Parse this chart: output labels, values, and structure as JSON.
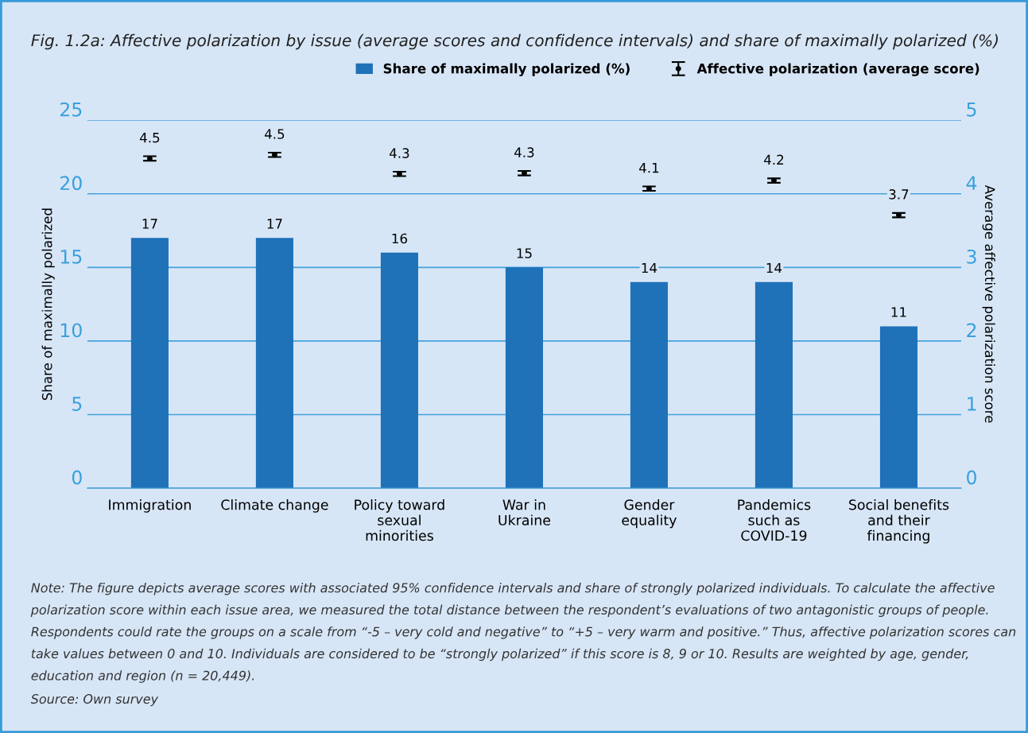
{
  "chart_data": {
    "type": "bar",
    "title": "Fig. 1.2a: Affective polarization by issue (average scores and confidence intervals) and share of maximally polarized (%)",
    "categories": [
      "Immigration",
      "Climate change",
      "Policy toward\nsexual\nminorities",
      "War in\nUkraine",
      "Gender\nequality",
      "Pandemics\nsuch as\nCOVID-19",
      "Social benefits\nand their\nfinancing"
    ],
    "series": [
      {
        "name": "Share of maximally polarized (%)",
        "color": "#1f71b8",
        "values": [
          17,
          17,
          16,
          15,
          14,
          14,
          11
        ],
        "value_labels": [
          "17",
          "17",
          "16",
          "15",
          "14",
          "14",
          "11"
        ]
      },
      {
        "name": "Affective polarization (average score)",
        "type": "scatter",
        "axis": "y2",
        "color": "#000000",
        "values": [
          4.48,
          4.53,
          4.27,
          4.28,
          4.07,
          4.18,
          3.71
        ],
        "errors": [
          0.03,
          0.03,
          0.03,
          0.03,
          0.03,
          0.03,
          0.03
        ],
        "value_labels": [
          "4.5",
          "4.5",
          "4.3",
          "4.3",
          "4.1",
          "4.2",
          "3.7"
        ]
      }
    ],
    "ylabel": "Share of maximally polarized",
    "y2label": "Average affective polarization score",
    "ylim": [
      0,
      25
    ],
    "yticks": [
      0,
      5,
      10,
      15,
      20,
      25
    ],
    "y2lim": [
      0,
      5
    ],
    "y2ticks": [
      0,
      1,
      2,
      3,
      4,
      5
    ],
    "grid": "y",
    "legend": "top right",
    "marker": "circle",
    "annotations": [
      "Note: The figure depicts average scores with associated 95% confidence intervals and share of strongly polarized individuals. To calculate the affective polarization score within each issue area, we measured the total distance between the respondent’s evaluations of two antagonistic groups of people. Respondents could rate the groups on a scale from “-5 – very cold and negative” to “+5 – very warm and positive.” Thus, affective polarization scores can take values between 0 and 10. Individuals are considered to be “strongly polarized” if this score is 8, 9 or 10. Results are weighted by age, gender, education and region (n = 20,449).",
      "Source: Own survey"
    ]
  }
}
